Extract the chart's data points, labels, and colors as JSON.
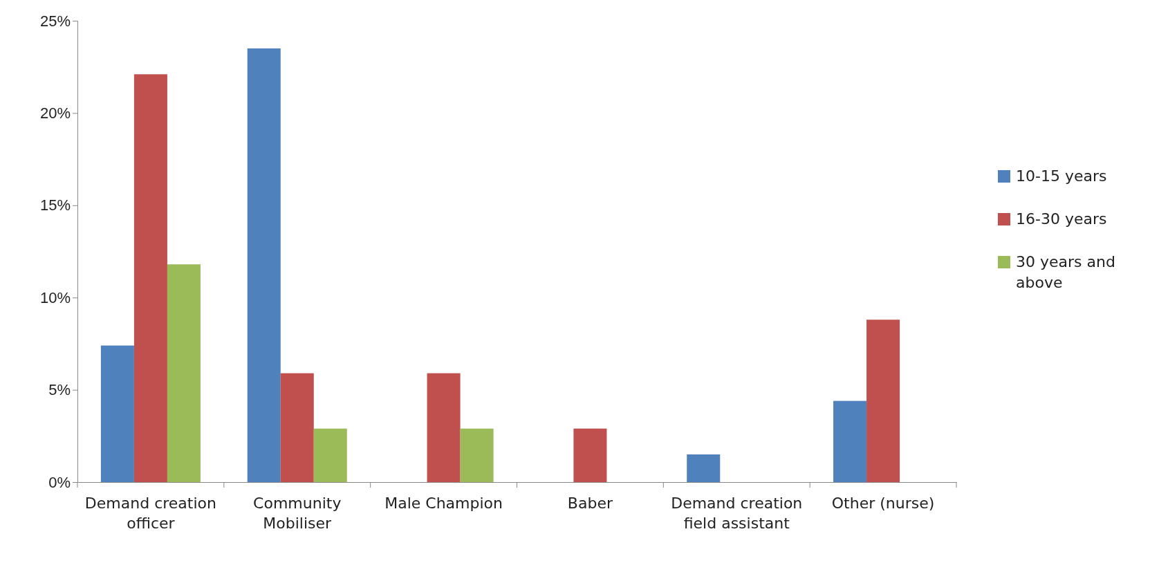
{
  "chart_data": {
    "type": "bar",
    "categories": [
      "Demand creation officer",
      "Community Mobiliser",
      "Male Champion",
      "Baber",
      "Demand creation field assistant",
      "Other (nurse)"
    ],
    "series": [
      {
        "name": "10-15 years",
        "color": "#4f81bd",
        "values": [
          7.4,
          23.5,
          null,
          null,
          1.5,
          4.4
        ]
      },
      {
        "name": "16-30 years",
        "color": "#c0504d",
        "values": [
          22.1,
          5.9,
          5.9,
          2.9,
          null,
          8.8
        ]
      },
      {
        "name": "30 years and above",
        "color": "#9bbb59",
        "values": [
          11.8,
          2.9,
          2.9,
          null,
          null,
          null
        ]
      }
    ],
    "ylim": [
      0,
      25
    ],
    "yticks": [
      {
        "value": 0,
        "label": "0%"
      },
      {
        "value": 5,
        "label": "5%"
      },
      {
        "value": 10,
        "label": "10%"
      },
      {
        "value": 15,
        "label": "15%"
      },
      {
        "value": 20,
        "label": "20%"
      },
      {
        "value": 25,
        "label": "25%"
      }
    ],
    "grid": false,
    "legend": "right"
  }
}
